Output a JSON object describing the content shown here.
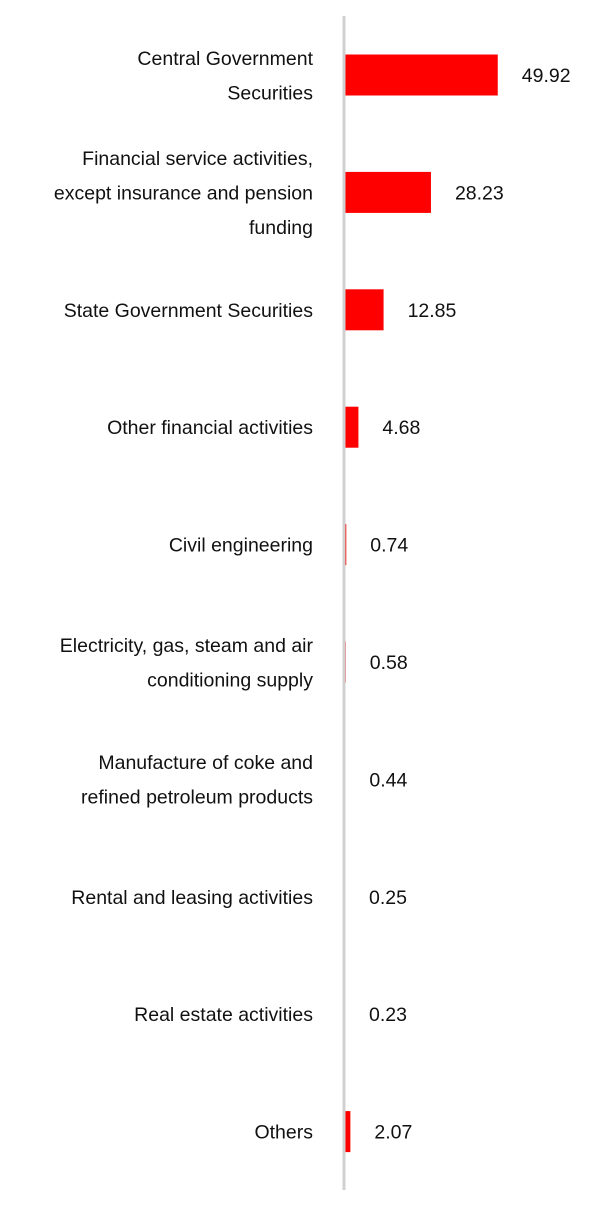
{
  "chart_data": {
    "type": "bar",
    "orientation": "horizontal",
    "categories": [
      [
        "Central Government",
        "Securities"
      ],
      [
        "Financial service activities,",
        "except insurance and pension",
        "funding"
      ],
      [
        "State Government Securities"
      ],
      [
        "Other financial activities"
      ],
      [
        "Civil engineering"
      ],
      [
        "Electricity, gas, steam and air",
        "conditioning supply"
      ],
      [
        "Manufacture of coke and",
        "refined petroleum products"
      ],
      [
        "Rental and leasing activities"
      ],
      [
        "Real estate activities"
      ],
      [
        "Others"
      ]
    ],
    "values": [
      49.92,
      28.23,
      12.85,
      4.68,
      0.74,
      0.58,
      0.44,
      0.25,
      0.23,
      2.07
    ],
    "value_labels": [
      "49.92",
      "28.23",
      "12.85",
      "4.68",
      "0.74",
      "0.58",
      "0.44",
      "0.25",
      "0.23",
      "2.07"
    ],
    "bar_color": "#ff0000",
    "axis_color": "#d0d0d0",
    "xlim": [
      0,
      50
    ],
    "grid": false,
    "legend": "none",
    "data_labels": "outside-end"
  }
}
